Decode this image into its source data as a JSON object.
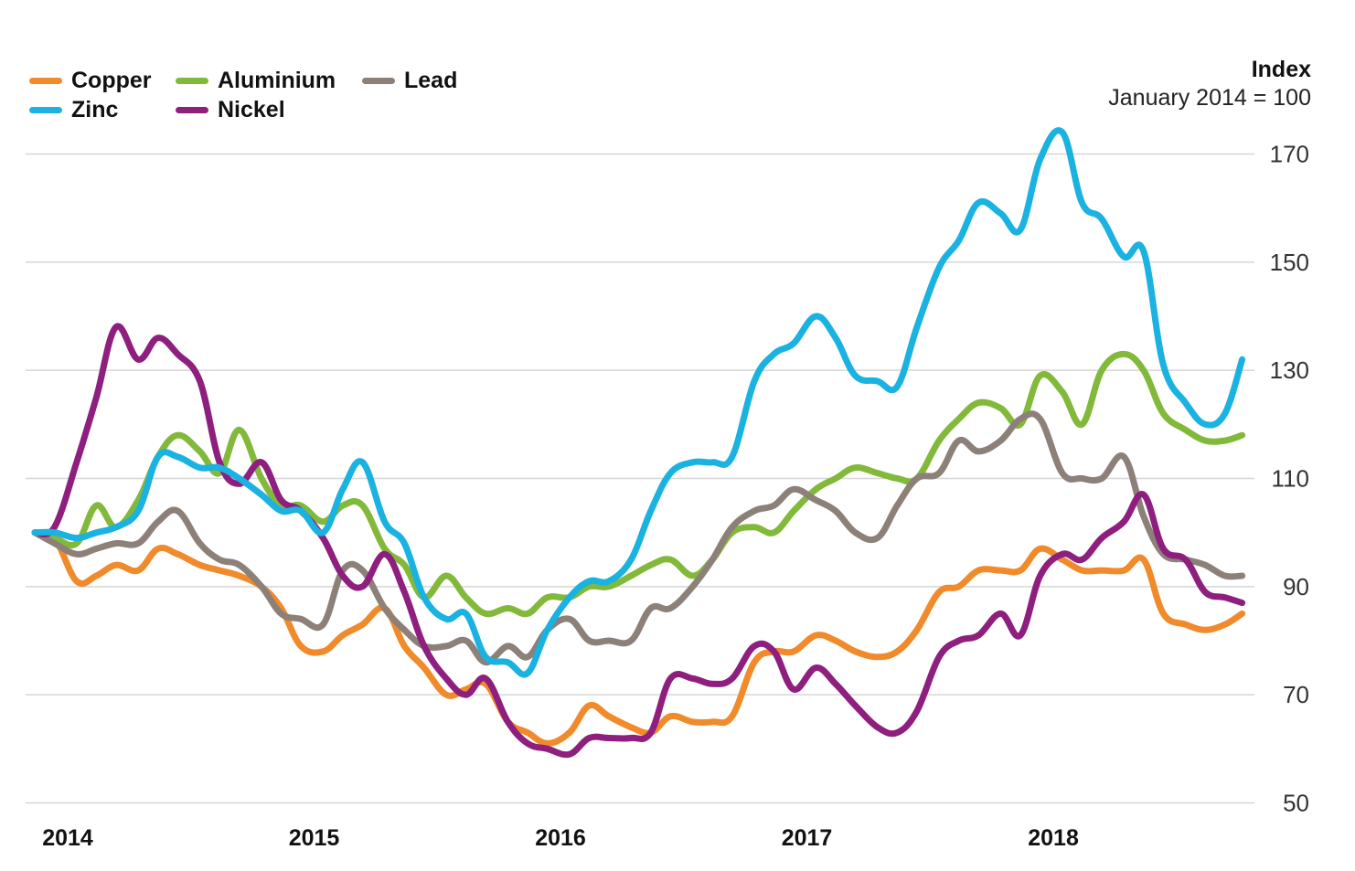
{
  "colors": {
    "Copper": "#f08a2a",
    "Zinc": "#1ab2e0",
    "Aluminium": "#82b93a",
    "Nickel": "#8e1f7e",
    "Lead": "#8c8079",
    "grid": "#d6d6d6"
  },
  "chart_data": {
    "type": "line",
    "ylabel": "Index",
    "ysub": "January 2014 = 100",
    "ylim": [
      50,
      175
    ],
    "yticks": [
      50,
      70,
      90,
      110,
      130,
      150,
      170
    ],
    "xlim": [
      2014.0,
      2018.92
    ],
    "xticks": [
      {
        "value": 2014.0,
        "label": "2014"
      },
      {
        "value": 2015.0,
        "label": "2015"
      },
      {
        "value": 2016.0,
        "label": "2016"
      },
      {
        "value": 2017.0,
        "label": "2017"
      },
      {
        "value": 2018.0,
        "label": "2018"
      }
    ],
    "legend_position": "top-left",
    "series": [
      {
        "name": "Copper",
        "points": [
          [
            2014.0,
            100
          ],
          [
            2014.08,
            99
          ],
          [
            2014.17,
            91
          ],
          [
            2014.25,
            92
          ],
          [
            2014.33,
            94
          ],
          [
            2014.42,
            93
          ],
          [
            2014.5,
            97
          ],
          [
            2014.58,
            96
          ],
          [
            2014.67,
            94
          ],
          [
            2014.75,
            93
          ],
          [
            2014.83,
            92
          ],
          [
            2014.92,
            90
          ],
          [
            2015.0,
            86
          ],
          [
            2015.08,
            79
          ],
          [
            2015.17,
            78
          ],
          [
            2015.25,
            81
          ],
          [
            2015.33,
            83
          ],
          [
            2015.42,
            86
          ],
          [
            2015.5,
            79
          ],
          [
            2015.58,
            75
          ],
          [
            2015.67,
            70
          ],
          [
            2015.75,
            71
          ],
          [
            2015.83,
            72
          ],
          [
            2015.92,
            65
          ],
          [
            2016.0,
            63
          ],
          [
            2016.08,
            61
          ],
          [
            2016.17,
            63
          ],
          [
            2016.25,
            68
          ],
          [
            2016.33,
            66
          ],
          [
            2016.42,
            64
          ],
          [
            2016.5,
            63
          ],
          [
            2016.58,
            66
          ],
          [
            2016.67,
            65
          ],
          [
            2016.75,
            65
          ],
          [
            2016.83,
            66
          ],
          [
            2016.92,
            76
          ],
          [
            2017.0,
            78
          ],
          [
            2017.08,
            78
          ],
          [
            2017.17,
            81
          ],
          [
            2017.25,
            80
          ],
          [
            2017.33,
            78
          ],
          [
            2017.42,
            77
          ],
          [
            2017.5,
            78
          ],
          [
            2017.58,
            82
          ],
          [
            2017.67,
            89
          ],
          [
            2017.75,
            90
          ],
          [
            2017.83,
            93
          ],
          [
            2017.92,
            93
          ],
          [
            2018.0,
            93
          ],
          [
            2018.08,
            97
          ],
          [
            2018.17,
            95
          ],
          [
            2018.25,
            93
          ],
          [
            2018.33,
            93
          ],
          [
            2018.42,
            93
          ],
          [
            2018.5,
            95
          ],
          [
            2018.58,
            85
          ],
          [
            2018.67,
            83
          ],
          [
            2018.75,
            82
          ],
          [
            2018.83,
            83
          ],
          [
            2018.9,
            85
          ]
        ]
      },
      {
        "name": "Zinc",
        "points": [
          [
            2014.0,
            100
          ],
          [
            2014.08,
            100
          ],
          [
            2014.17,
            99
          ],
          [
            2014.25,
            100
          ],
          [
            2014.33,
            101
          ],
          [
            2014.42,
            104
          ],
          [
            2014.5,
            114
          ],
          [
            2014.58,
            114
          ],
          [
            2014.67,
            112
          ],
          [
            2014.75,
            112
          ],
          [
            2014.83,
            110
          ],
          [
            2014.92,
            107
          ],
          [
            2015.0,
            104
          ],
          [
            2015.08,
            104
          ],
          [
            2015.17,
            100
          ],
          [
            2015.25,
            108
          ],
          [
            2015.33,
            113
          ],
          [
            2015.42,
            102
          ],
          [
            2015.5,
            98
          ],
          [
            2015.58,
            88
          ],
          [
            2015.67,
            84
          ],
          [
            2015.75,
            85
          ],
          [
            2015.83,
            77
          ],
          [
            2015.92,
            76
          ],
          [
            2016.0,
            74
          ],
          [
            2016.08,
            82
          ],
          [
            2016.17,
            88
          ],
          [
            2016.25,
            91
          ],
          [
            2016.33,
            91
          ],
          [
            2016.42,
            95
          ],
          [
            2016.5,
            104
          ],
          [
            2016.58,
            111
          ],
          [
            2016.67,
            113
          ],
          [
            2016.75,
            113
          ],
          [
            2016.83,
            114
          ],
          [
            2016.92,
            128
          ],
          [
            2017.0,
            133
          ],
          [
            2017.08,
            135
          ],
          [
            2017.17,
            140
          ],
          [
            2017.25,
            136
          ],
          [
            2017.33,
            129
          ],
          [
            2017.42,
            128
          ],
          [
            2017.5,
            127
          ],
          [
            2017.58,
            138
          ],
          [
            2017.67,
            149
          ],
          [
            2017.75,
            154
          ],
          [
            2017.83,
            161
          ],
          [
            2017.92,
            159
          ],
          [
            2018.0,
            156
          ],
          [
            2018.08,
            169
          ],
          [
            2018.17,
            174
          ],
          [
            2018.25,
            161
          ],
          [
            2018.33,
            158
          ],
          [
            2018.42,
            151
          ],
          [
            2018.5,
            152
          ],
          [
            2018.58,
            131
          ],
          [
            2018.67,
            124
          ],
          [
            2018.75,
            120
          ],
          [
            2018.83,
            122
          ],
          [
            2018.9,
            132
          ]
        ]
      },
      {
        "name": "Aluminium",
        "points": [
          [
            2014.0,
            100
          ],
          [
            2014.08,
            99
          ],
          [
            2014.17,
            98
          ],
          [
            2014.25,
            105
          ],
          [
            2014.33,
            101
          ],
          [
            2014.42,
            106
          ],
          [
            2014.5,
            114
          ],
          [
            2014.58,
            118
          ],
          [
            2014.67,
            115
          ],
          [
            2014.75,
            111
          ],
          [
            2014.83,
            119
          ],
          [
            2014.92,
            110
          ],
          [
            2015.0,
            105
          ],
          [
            2015.08,
            105
          ],
          [
            2015.17,
            102
          ],
          [
            2015.25,
            105
          ],
          [
            2015.33,
            105
          ],
          [
            2015.42,
            97
          ],
          [
            2015.5,
            94
          ],
          [
            2015.58,
            88
          ],
          [
            2015.67,
            92
          ],
          [
            2015.75,
            88
          ],
          [
            2015.83,
            85
          ],
          [
            2015.92,
            86
          ],
          [
            2016.0,
            85
          ],
          [
            2016.08,
            88
          ],
          [
            2016.17,
            88
          ],
          [
            2016.25,
            90
          ],
          [
            2016.33,
            90
          ],
          [
            2016.42,
            92
          ],
          [
            2016.5,
            94
          ],
          [
            2016.58,
            95
          ],
          [
            2016.67,
            92
          ],
          [
            2016.75,
            95
          ],
          [
            2016.83,
            100
          ],
          [
            2016.92,
            101
          ],
          [
            2017.0,
            100
          ],
          [
            2017.08,
            104
          ],
          [
            2017.17,
            108
          ],
          [
            2017.25,
            110
          ],
          [
            2017.33,
            112
          ],
          [
            2017.42,
            111
          ],
          [
            2017.5,
            110
          ],
          [
            2017.58,
            110
          ],
          [
            2017.67,
            117
          ],
          [
            2017.75,
            121
          ],
          [
            2017.83,
            124
          ],
          [
            2017.92,
            123
          ],
          [
            2018.0,
            120
          ],
          [
            2018.08,
            129
          ],
          [
            2018.17,
            126
          ],
          [
            2018.25,
            120
          ],
          [
            2018.33,
            130
          ],
          [
            2018.42,
            133
          ],
          [
            2018.5,
            130
          ],
          [
            2018.58,
            122
          ],
          [
            2018.67,
            119
          ],
          [
            2018.75,
            117
          ],
          [
            2018.83,
            117
          ],
          [
            2018.9,
            118
          ]
        ]
      },
      {
        "name": "Nickel",
        "points": [
          [
            2014.0,
            100
          ],
          [
            2014.08,
            101
          ],
          [
            2014.17,
            113
          ],
          [
            2014.25,
            125
          ],
          [
            2014.33,
            138
          ],
          [
            2014.42,
            132
          ],
          [
            2014.5,
            136
          ],
          [
            2014.58,
            133
          ],
          [
            2014.67,
            128
          ],
          [
            2014.75,
            113
          ],
          [
            2014.83,
            109
          ],
          [
            2014.92,
            113
          ],
          [
            2015.0,
            106
          ],
          [
            2015.08,
            104
          ],
          [
            2015.17,
            99
          ],
          [
            2015.25,
            92
          ],
          [
            2015.33,
            90
          ],
          [
            2015.42,
            96
          ],
          [
            2015.5,
            89
          ],
          [
            2015.58,
            79
          ],
          [
            2015.67,
            73
          ],
          [
            2015.75,
            70
          ],
          [
            2015.83,
            73
          ],
          [
            2015.92,
            65
          ],
          [
            2016.0,
            61
          ],
          [
            2016.08,
            60
          ],
          [
            2016.17,
            59
          ],
          [
            2016.25,
            62
          ],
          [
            2016.33,
            62
          ],
          [
            2016.42,
            62
          ],
          [
            2016.5,
            63
          ],
          [
            2016.58,
            73
          ],
          [
            2016.67,
            73
          ],
          [
            2016.75,
            72
          ],
          [
            2016.83,
            73
          ],
          [
            2016.92,
            79
          ],
          [
            2017.0,
            78
          ],
          [
            2017.08,
            71
          ],
          [
            2017.17,
            75
          ],
          [
            2017.25,
            72
          ],
          [
            2017.33,
            68
          ],
          [
            2017.42,
            64
          ],
          [
            2017.5,
            63
          ],
          [
            2017.58,
            67
          ],
          [
            2017.67,
            77
          ],
          [
            2017.75,
            80
          ],
          [
            2017.83,
            81
          ],
          [
            2017.92,
            85
          ],
          [
            2018.0,
            81
          ],
          [
            2018.08,
            92
          ],
          [
            2018.17,
            96
          ],
          [
            2018.25,
            95
          ],
          [
            2018.33,
            99
          ],
          [
            2018.42,
            102
          ],
          [
            2018.5,
            107
          ],
          [
            2018.58,
            97
          ],
          [
            2018.67,
            95
          ],
          [
            2018.75,
            89
          ],
          [
            2018.83,
            88
          ],
          [
            2018.9,
            87
          ]
        ]
      },
      {
        "name": "Lead",
        "points": [
          [
            2014.0,
            100
          ],
          [
            2014.08,
            98
          ],
          [
            2014.17,
            96
          ],
          [
            2014.25,
            97
          ],
          [
            2014.33,
            98
          ],
          [
            2014.42,
            98
          ],
          [
            2014.5,
            102
          ],
          [
            2014.58,
            104
          ],
          [
            2014.67,
            98
          ],
          [
            2014.75,
            95
          ],
          [
            2014.83,
            94
          ],
          [
            2014.92,
            90
          ],
          [
            2015.0,
            85
          ],
          [
            2015.08,
            84
          ],
          [
            2015.17,
            83
          ],
          [
            2015.25,
            93
          ],
          [
            2015.33,
            93
          ],
          [
            2015.42,
            86
          ],
          [
            2015.5,
            82
          ],
          [
            2015.58,
            79
          ],
          [
            2015.67,
            79
          ],
          [
            2015.75,
            80
          ],
          [
            2015.83,
            76
          ],
          [
            2015.92,
            79
          ],
          [
            2016.0,
            77
          ],
          [
            2016.08,
            82
          ],
          [
            2016.17,
            84
          ],
          [
            2016.25,
            80
          ],
          [
            2016.33,
            80
          ],
          [
            2016.42,
            80
          ],
          [
            2016.5,
            86
          ],
          [
            2016.58,
            86
          ],
          [
            2016.67,
            90
          ],
          [
            2016.75,
            95
          ],
          [
            2016.83,
            101
          ],
          [
            2016.92,
            104
          ],
          [
            2017.0,
            105
          ],
          [
            2017.08,
            108
          ],
          [
            2017.17,
            106
          ],
          [
            2017.25,
            104
          ],
          [
            2017.33,
            100
          ],
          [
            2017.42,
            99
          ],
          [
            2017.5,
            105
          ],
          [
            2017.58,
            110
          ],
          [
            2017.67,
            111
          ],
          [
            2017.75,
            117
          ],
          [
            2017.83,
            115
          ],
          [
            2017.92,
            117
          ],
          [
            2018.0,
            121
          ],
          [
            2018.08,
            121
          ],
          [
            2018.17,
            111
          ],
          [
            2018.25,
            110
          ],
          [
            2018.33,
            110
          ],
          [
            2018.42,
            114
          ],
          [
            2018.5,
            103
          ],
          [
            2018.58,
            96
          ],
          [
            2018.67,
            95
          ],
          [
            2018.75,
            94
          ],
          [
            2018.83,
            92
          ],
          [
            2018.9,
            92
          ]
        ]
      }
    ]
  },
  "legend": [
    {
      "name": "Copper",
      "label": "Copper"
    },
    {
      "name": "Aluminium",
      "label": "Aluminium"
    },
    {
      "name": "Lead",
      "label": "Lead"
    },
    {
      "name": "Zinc",
      "label": "Zinc"
    },
    {
      "name": "Nickel",
      "label": "Nickel"
    }
  ]
}
